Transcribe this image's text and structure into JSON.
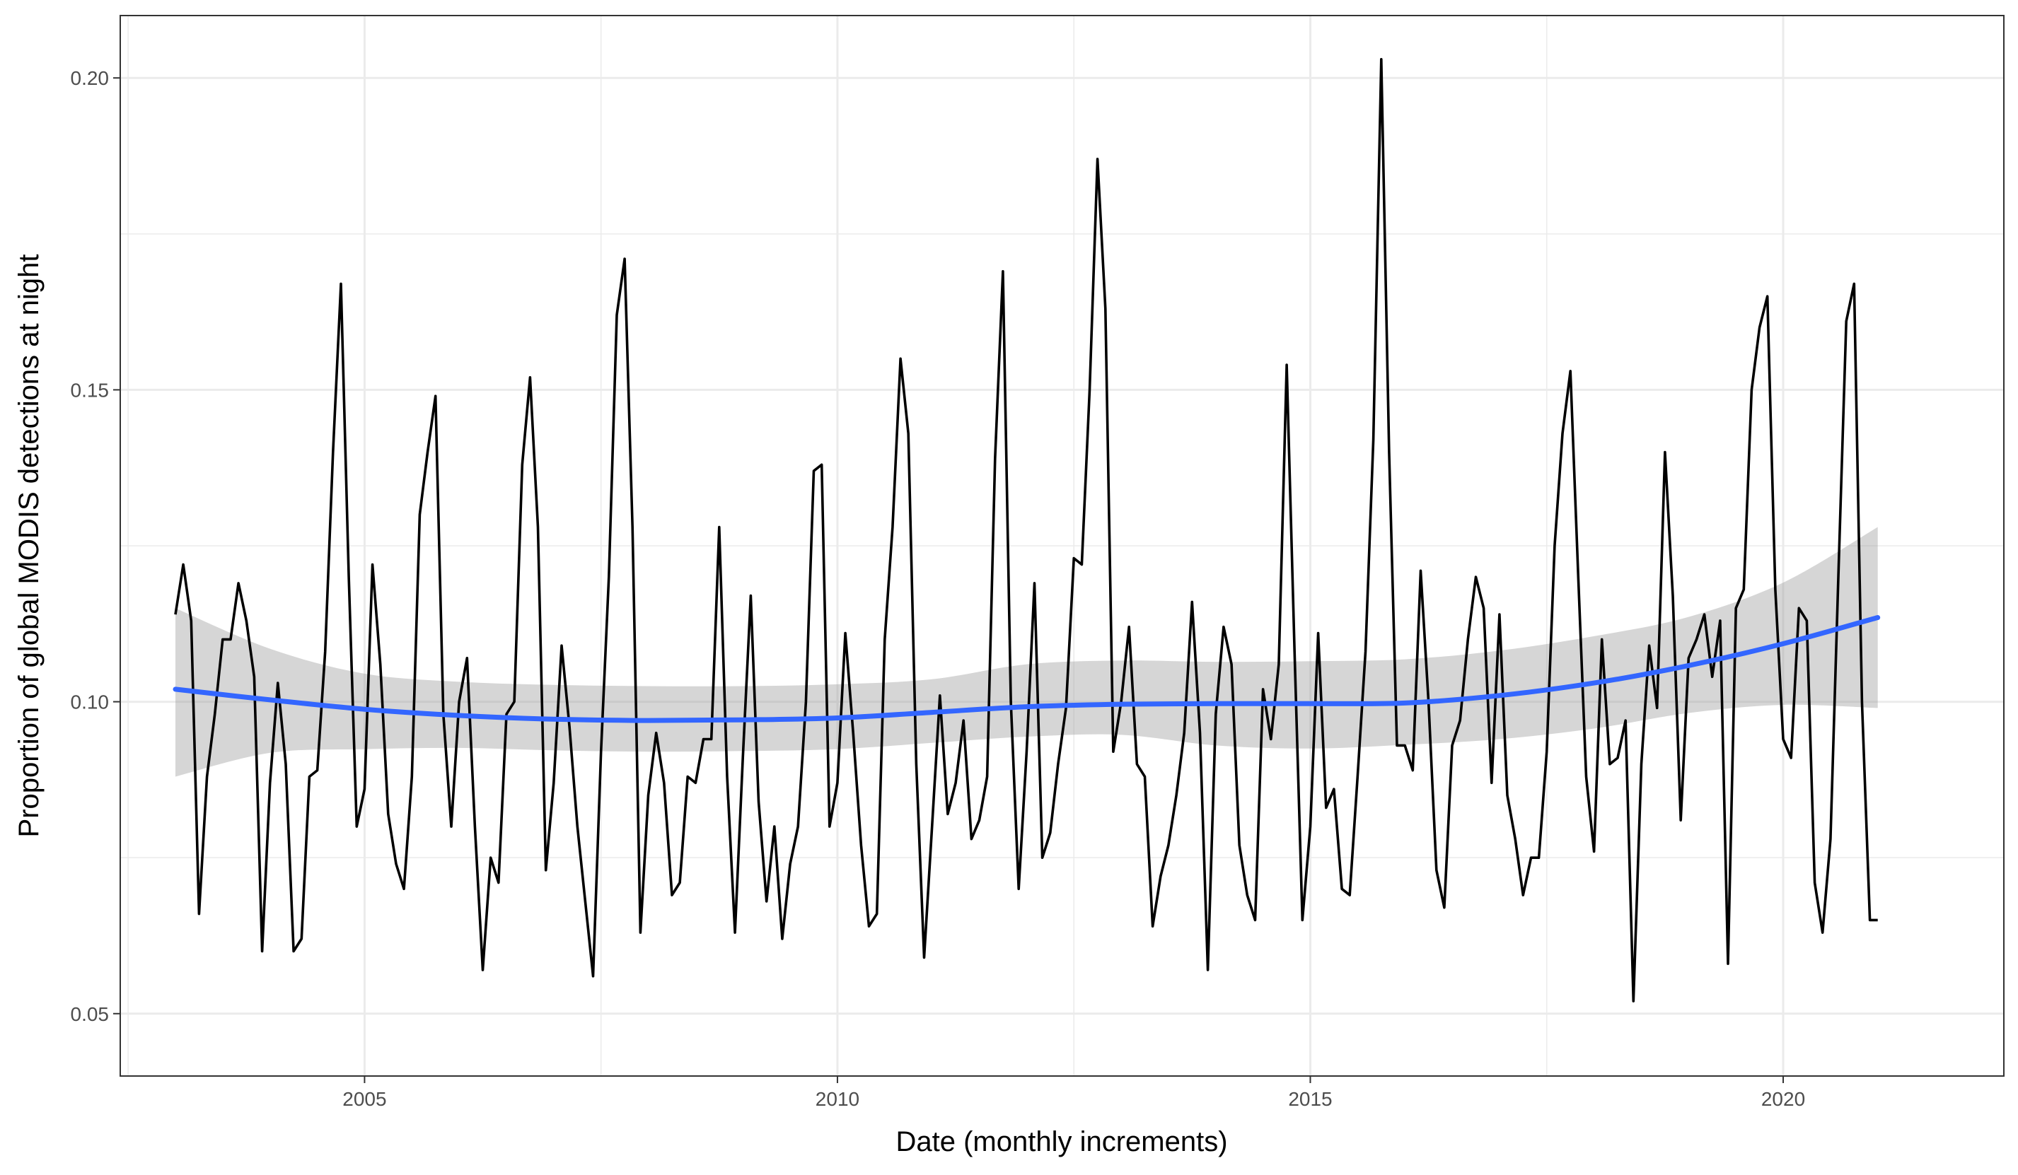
{
  "chart_data": {
    "type": "line",
    "title": "",
    "xlabel": "Date (monthly increments)",
    "ylabel": "Proportion of global MODIS detections at night",
    "xlim": [
      "2002-06",
      "2022-05"
    ],
    "ylim": [
      0.04,
      0.21
    ],
    "x_major_ticks": [
      "2005",
      "2010",
      "2015",
      "2020"
    ],
    "x_minor_ticks": [
      "2002.5",
      "2007.5",
      "2012.5",
      "2017.5"
    ],
    "y_major_ticks": [
      "0.05",
      "0.10",
      "0.15",
      "0.20"
    ],
    "y_minor_ticks": [
      "0.075",
      "0.125",
      "0.175"
    ],
    "grid": true,
    "series": [
      {
        "kind": "observed",
        "color": "#000000",
        "x": [
          "2003-01",
          "2003-02",
          "2003-03",
          "2003-04",
          "2003-05",
          "2003-06",
          "2003-07",
          "2003-08",
          "2003-09",
          "2003-10",
          "2003-11",
          "2003-12",
          "2004-01",
          "2004-02",
          "2004-03",
          "2004-04",
          "2004-05",
          "2004-06",
          "2004-07",
          "2004-08",
          "2004-09",
          "2004-10",
          "2004-11",
          "2004-12",
          "2005-01",
          "2005-02",
          "2005-03",
          "2005-04",
          "2005-05",
          "2005-06",
          "2005-07",
          "2005-08",
          "2005-09",
          "2005-10",
          "2005-11",
          "2005-12",
          "2006-01",
          "2006-02",
          "2006-03",
          "2006-04",
          "2006-05",
          "2006-06",
          "2006-07",
          "2006-08",
          "2006-09",
          "2006-10",
          "2006-11",
          "2006-12",
          "2007-01",
          "2007-02",
          "2007-03",
          "2007-04",
          "2007-05",
          "2007-06",
          "2007-07",
          "2007-08",
          "2007-09",
          "2007-10",
          "2007-11",
          "2007-12",
          "2008-01",
          "2008-02",
          "2008-03",
          "2008-04",
          "2008-05",
          "2008-06",
          "2008-07",
          "2008-08",
          "2008-09",
          "2008-10",
          "2008-11",
          "2008-12",
          "2009-01",
          "2009-02",
          "2009-03",
          "2009-04",
          "2009-05",
          "2009-06",
          "2009-07",
          "2009-08",
          "2009-09",
          "2009-10",
          "2009-11",
          "2009-12",
          "2010-01",
          "2010-02",
          "2010-03",
          "2010-04",
          "2010-05",
          "2010-06",
          "2010-07",
          "2010-08",
          "2010-09",
          "2010-10",
          "2010-11",
          "2010-12",
          "2011-01",
          "2011-02",
          "2011-03",
          "2011-04",
          "2011-05",
          "2011-06",
          "2011-07",
          "2011-08",
          "2011-09",
          "2011-10",
          "2011-11",
          "2011-12",
          "2012-01",
          "2012-02",
          "2012-03",
          "2012-04",
          "2012-05",
          "2012-06",
          "2012-07",
          "2012-08",
          "2012-09",
          "2012-10",
          "2012-11",
          "2012-12",
          "2013-01",
          "2013-02",
          "2013-03",
          "2013-04",
          "2013-05",
          "2013-06",
          "2013-07",
          "2013-08",
          "2013-09",
          "2013-10",
          "2013-11",
          "2013-12",
          "2014-01",
          "2014-02",
          "2014-03",
          "2014-04",
          "2014-05",
          "2014-06",
          "2014-07",
          "2014-08",
          "2014-09",
          "2014-10",
          "2014-11",
          "2014-12",
          "2015-01",
          "2015-02",
          "2015-03",
          "2015-04",
          "2015-05",
          "2015-06",
          "2015-07",
          "2015-08",
          "2015-09",
          "2015-10",
          "2015-11",
          "2015-12",
          "2016-01",
          "2016-02",
          "2016-03",
          "2016-04",
          "2016-05",
          "2016-06",
          "2016-07",
          "2016-08",
          "2016-09",
          "2016-10",
          "2016-11",
          "2016-12",
          "2017-01",
          "2017-02",
          "2017-03",
          "2017-04",
          "2017-05",
          "2017-06",
          "2017-07",
          "2017-08",
          "2017-09",
          "2017-10",
          "2017-11",
          "2017-12",
          "2018-01",
          "2018-02",
          "2018-03",
          "2018-04",
          "2018-05",
          "2018-06",
          "2018-07",
          "2018-08",
          "2018-09",
          "2018-10",
          "2018-11",
          "2018-12",
          "2019-01",
          "2019-02",
          "2019-03",
          "2019-04",
          "2019-05",
          "2019-06",
          "2019-07",
          "2019-08",
          "2019-09",
          "2019-10",
          "2019-11",
          "2019-12",
          "2020-01",
          "2020-02",
          "2020-03",
          "2020-04",
          "2020-05",
          "2020-06",
          "2020-07",
          "2020-08",
          "2020-09",
          "2020-10",
          "2020-11",
          "2020-12",
          "2021-01"
        ],
        "y": [
          0.114,
          0.122,
          0.113,
          0.066,
          0.088,
          0.098,
          0.11,
          0.11,
          0.119,
          0.113,
          0.104,
          0.06,
          0.087,
          0.103,
          0.09,
          0.06,
          0.062,
          0.088,
          0.089,
          0.108,
          0.14,
          0.167,
          0.12,
          0.08,
          0.086,
          0.122,
          0.106,
          0.082,
          0.074,
          0.07,
          0.088,
          0.13,
          0.14,
          0.149,
          0.098,
          0.08,
          0.1,
          0.107,
          0.08,
          0.057,
          0.075,
          0.071,
          0.098,
          0.1,
          0.138,
          0.152,
          0.128,
          0.073,
          0.087,
          0.109,
          0.096,
          0.08,
          0.068,
          0.056,
          0.092,
          0.12,
          0.162,
          0.171,
          0.128,
          0.063,
          0.085,
          0.095,
          0.087,
          0.069,
          0.071,
          0.088,
          0.087,
          0.094,
          0.094,
          0.128,
          0.088,
          0.063,
          0.091,
          0.117,
          0.084,
          0.068,
          0.08,
          0.062,
          0.074,
          0.08,
          0.1,
          0.137,
          0.138,
          0.08,
          0.087,
          0.111,
          0.095,
          0.077,
          0.064,
          0.066,
          0.11,
          0.128,
          0.155,
          0.143,
          0.09,
          0.059,
          0.08,
          0.101,
          0.082,
          0.087,
          0.097,
          0.078,
          0.081,
          0.088,
          0.139,
          0.169,
          0.1,
          0.07,
          0.092,
          0.119,
          0.075,
          0.079,
          0.09,
          0.099,
          0.123,
          0.122,
          0.15,
          0.187,
          0.163,
          0.092,
          0.1,
          0.112,
          0.09,
          0.088,
          0.064,
          0.072,
          0.077,
          0.085,
          0.095,
          0.116,
          0.095,
          0.057,
          0.098,
          0.112,
          0.106,
          0.077,
          0.069,
          0.065,
          0.102,
          0.094,
          0.106,
          0.154,
          0.108,
          0.065,
          0.08,
          0.111,
          0.083,
          0.086,
          0.07,
          0.069,
          0.088,
          0.108,
          0.142,
          0.203,
          0.14,
          0.093,
          0.093,
          0.089,
          0.121,
          0.1,
          0.073,
          0.067,
          0.093,
          0.097,
          0.11,
          0.12,
          0.115,
          0.087,
          0.114,
          0.085,
          0.078,
          0.069,
          0.075,
          0.075,
          0.092,
          0.125,
          0.143,
          0.153,
          0.12,
          0.088,
          0.076,
          0.11,
          0.09,
          0.091,
          0.097,
          0.052,
          0.09,
          0.109,
          0.099,
          0.14,
          0.117,
          0.081,
          0.107,
          0.11,
          0.114,
          0.104,
          0.113,
          0.058,
          0.115,
          0.118,
          0.15,
          0.16,
          0.165,
          0.118,
          0.094,
          0.091,
          0.115,
          0.113,
          0.071,
          0.063,
          0.078,
          0.12,
          0.161,
          0.167,
          0.1,
          0.065,
          0.065
        ]
      },
      {
        "kind": "smooth",
        "color": "#3366FF",
        "band_color": "#999999",
        "x": [
          "2003-01",
          "2004-01",
          "2005-01",
          "2006-01",
          "2007-01",
          "2008-01",
          "2009-01",
          "2010-01",
          "2011-01",
          "2012-01",
          "2013-01",
          "2014-01",
          "2015-01",
          "2016-01",
          "2017-01",
          "2018-01",
          "2019-01",
          "2020-01",
          "2021-01"
        ],
        "y": [
          0.102,
          0.1003,
          0.0988,
          0.0978,
          0.0972,
          0.097,
          0.0971,
          0.0974,
          0.0983,
          0.0992,
          0.0996,
          0.0997,
          0.0997,
          0.0998,
          0.101,
          0.103,
          0.1058,
          0.1093,
          0.1135
        ],
        "lower": [
          0.088,
          0.0918,
          0.0924,
          0.0926,
          0.0922,
          0.092,
          0.0921,
          0.0924,
          0.0934,
          0.0944,
          0.0947,
          0.093,
          0.0925,
          0.0931,
          0.094,
          0.0957,
          0.0982,
          0.0995,
          0.099
        ],
        "upper": [
          0.115,
          0.1085,
          0.1045,
          0.1032,
          0.1027,
          0.1025,
          0.1025,
          0.1028,
          0.1036,
          0.106,
          0.1066,
          0.1064,
          0.1065,
          0.1068,
          0.1082,
          0.1105,
          0.1136,
          0.1191,
          0.128
        ]
      }
    ]
  }
}
